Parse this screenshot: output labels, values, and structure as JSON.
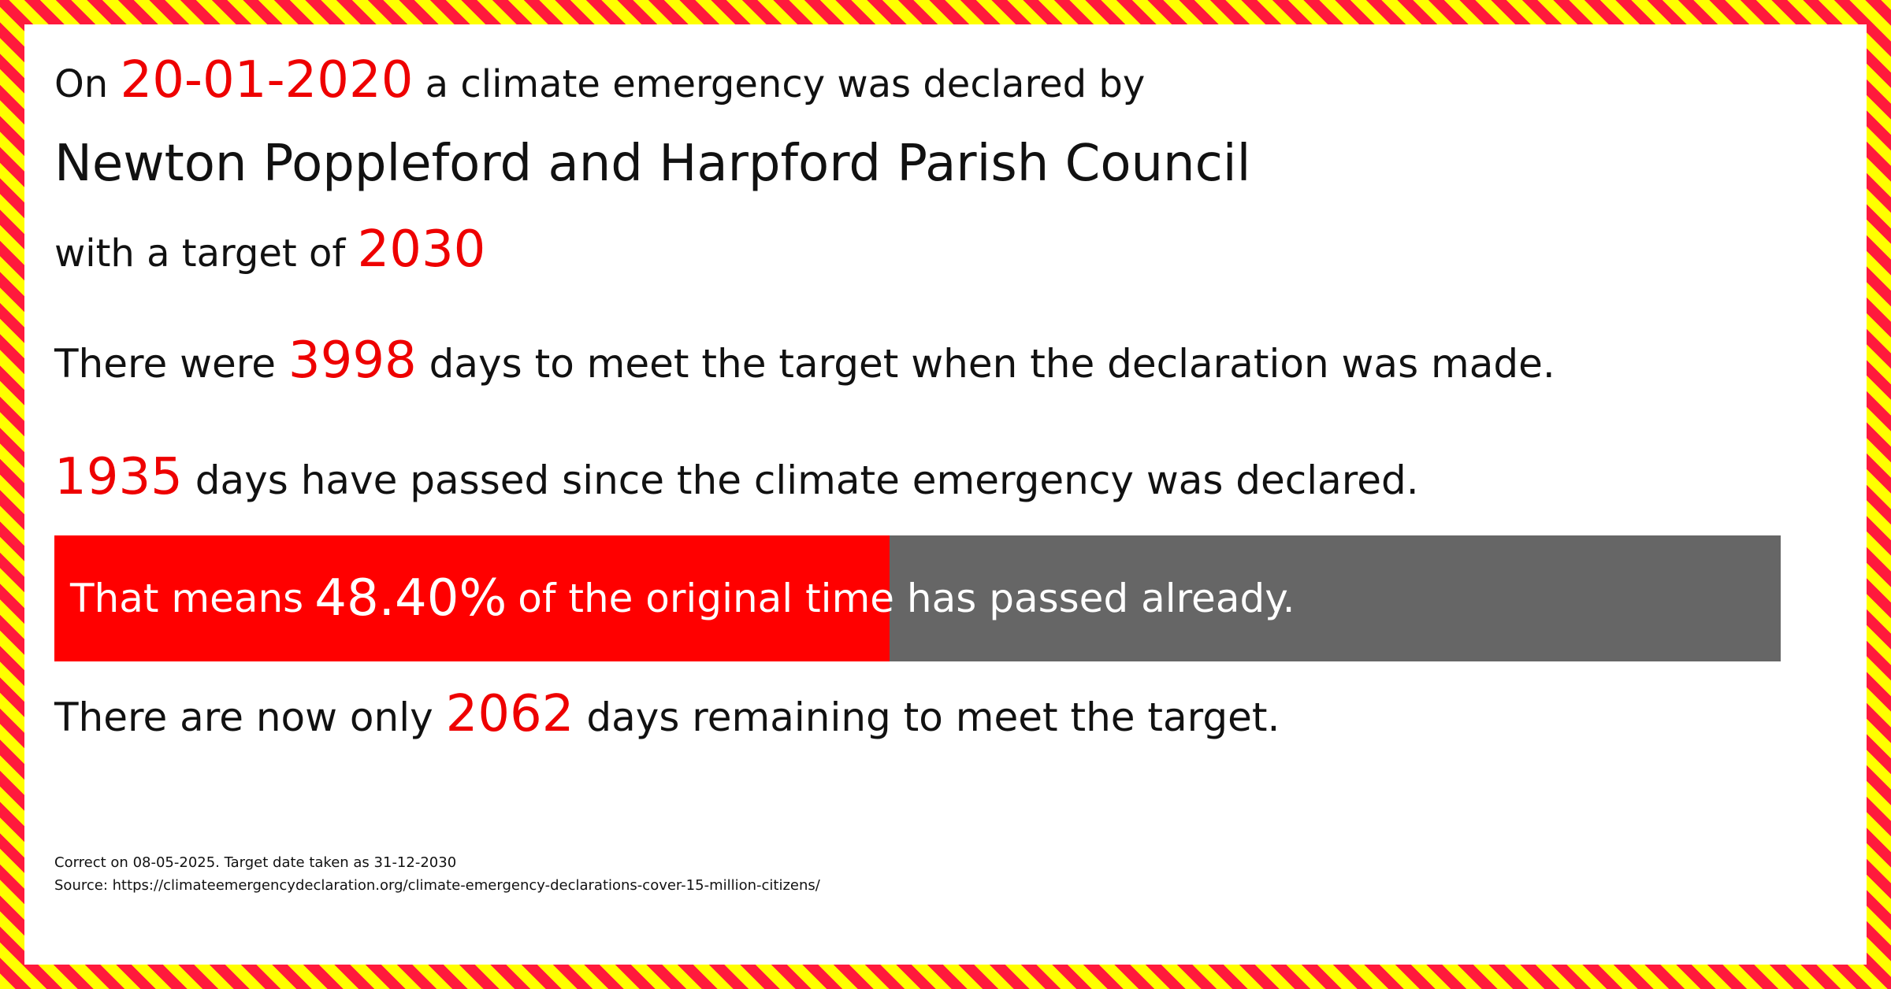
{
  "colors": {
    "highlight": "#ee0000",
    "stripe_yellow": "#ffff00",
    "stripe_red": "#ff1a3c",
    "bar_fill": "#ff0000",
    "bar_track": "#666666"
  },
  "declaration": {
    "prefix": "On",
    "date": "20-01-2020",
    "suffix": "a climate emergency was declared by",
    "council": "Newton Poppleford and Harpford Parish Council",
    "target_prefix": "with a target of",
    "target_year": "2030"
  },
  "stats": {
    "total_prefix": "There were",
    "total_days": "3998",
    "total_suffix": "days to meet the target when the declaration was made.",
    "passed_days": "1935",
    "passed_suffix": "days have passed since the climate emergency was declared.",
    "remaining_prefix": "There are now only",
    "remaining_days": "2062",
    "remaining_suffix": "days remaining to meet the target."
  },
  "progress": {
    "prefix": "That means",
    "percent_text": "48.40%",
    "suffix": "of the original time has passed already.",
    "fraction": 0.484
  },
  "footer": {
    "correct_on": "Correct on 08-05-2025. Target date taken as 31-12-2030",
    "source": "Source: https://climateemergencydeclaration.org/climate-emergency-declarations-cover-15-million-citizens/"
  }
}
